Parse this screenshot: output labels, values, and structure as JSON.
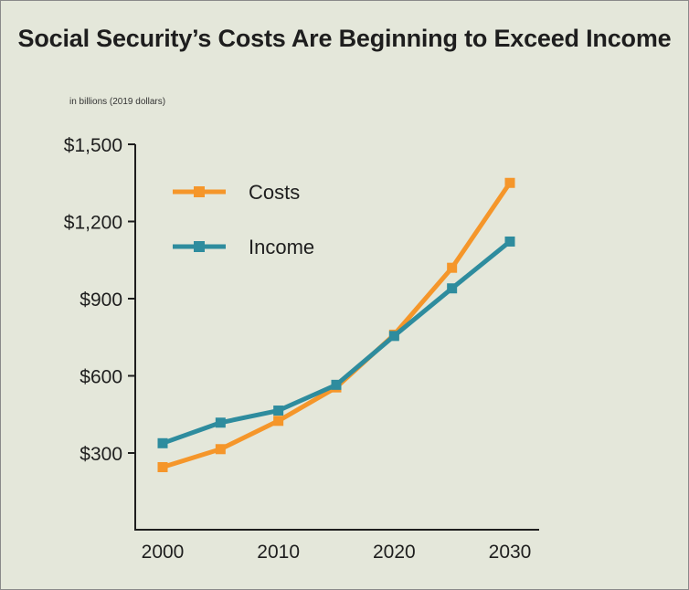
{
  "chart_data": {
    "type": "line",
    "title": "Social Security’s Costs Are Beginning to Exceed Income",
    "unit_note": "in billions (2019 dollars)",
    "x": [
      2000,
      2005,
      2010,
      2015,
      2020,
      2025,
      2030
    ],
    "xticks": [
      2000,
      2010,
      2020,
      2030
    ],
    "yticks": [
      300,
      600,
      900,
      1200,
      1500
    ],
    "ytick_labels": [
      "$300",
      "$600",
      "$900",
      "$1,200",
      "$1,500"
    ],
    "xlim": [
      1998,
      2032
    ],
    "ylim": [
      0,
      1500
    ],
    "grid": false,
    "legend_position": "top-left",
    "series": [
      {
        "name": "Costs",
        "color": "#f5962a",
        "values": [
          245,
          315,
          425,
          555,
          760,
          1020,
          1350
        ]
      },
      {
        "name": "Income",
        "color": "#2e8c9e",
        "values": [
          338,
          418,
          465,
          565,
          755,
          940,
          1122
        ]
      }
    ]
  }
}
